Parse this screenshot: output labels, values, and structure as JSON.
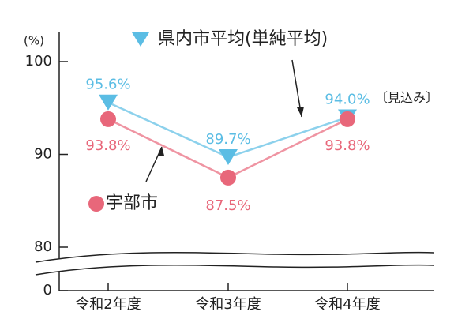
{
  "chart_data": {
    "type": "line",
    "y_label": "(%)",
    "categories": [
      "令和2年度",
      "令和3年度",
      "令和4年度"
    ],
    "series": [
      {
        "name": "県内市平均(単純平均)",
        "color": "#5bbde4",
        "marker": "triangle-down",
        "values": [
          95.6,
          89.7,
          94.0
        ],
        "value_labels": [
          "95.6%",
          "89.7%",
          "94.0%"
        ]
      },
      {
        "name": "宇部市",
        "color": "#e8677a",
        "marker": "circle",
        "values": [
          93.8,
          87.5,
          93.8
        ],
        "value_labels": [
          "93.8%",
          "87.5%",
          "93.8%"
        ]
      }
    ],
    "annotations": [
      "〔見込み〕"
    ],
    "ylim": [
      0,
      100
    ],
    "yticks": [
      0,
      80,
      90,
      100
    ],
    "axis_break": [
      0,
      80
    ]
  }
}
